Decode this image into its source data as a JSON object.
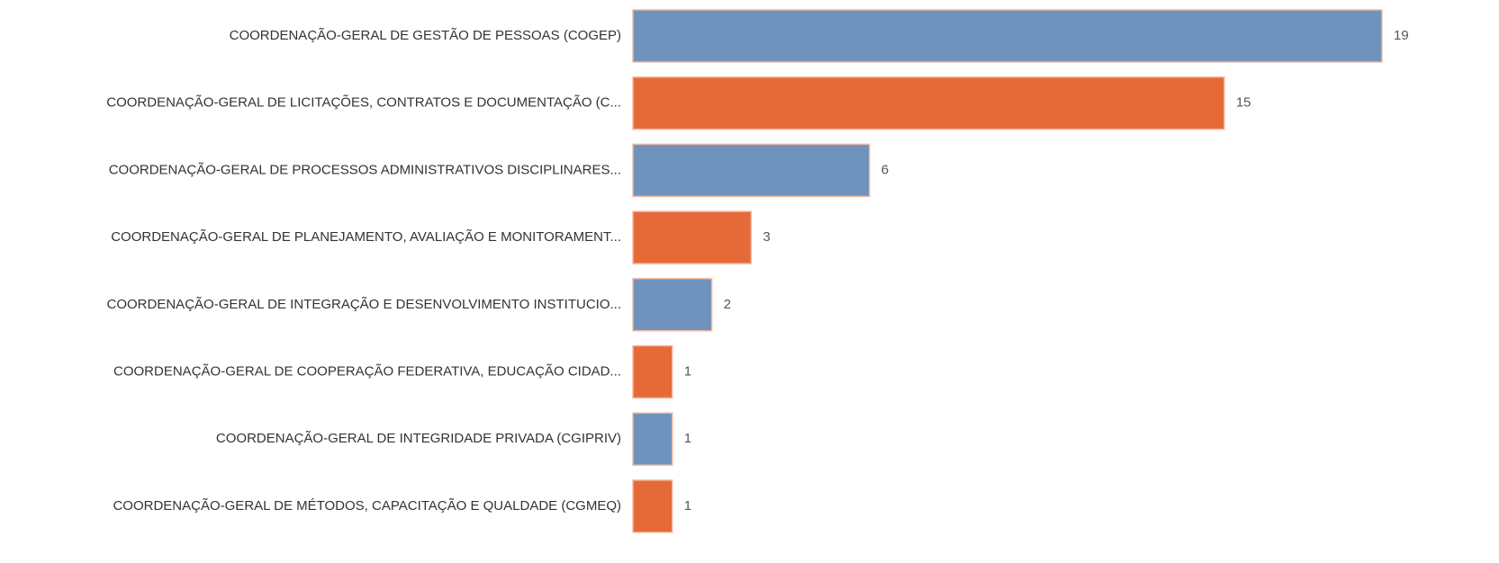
{
  "chart_data": {
    "type": "bar",
    "orientation": "horizontal",
    "categories": [
      "COORDENAÇÃO-GERAL DE GESTÃO DE PESSOAS (COGEP)",
      "COORDENAÇÃO-GERAL DE LICITAÇÕES, CONTRATOS E DOCUMENTAÇÃO (C...",
      "COORDENAÇÃO-GERAL DE PROCESSOS ADMINISTRATIVOS DISCIPLINARES...",
      "COORDENAÇÃO-GERAL DE PLANEJAMENTO, AVALIAÇÃO E MONITORAMENT...",
      "COORDENAÇÃO-GERAL DE INTEGRAÇÃO E DESENVOLVIMENTO INSTITUCIO...",
      "COORDENAÇÃO-GERAL DE COOPERAÇÃO FEDERATIVA, EDUCAÇÃO CIDAD...",
      "COORDENAÇÃO-GERAL DE INTEGRIDADE PRIVADA (CGIPRIV)",
      "COORDENAÇÃO-GERAL DE MÉTODOS, CAPACITAÇÃO E QUALDADE (CGMEQ)"
    ],
    "values": [
      19,
      15,
      6,
      3,
      2,
      1,
      1,
      1
    ],
    "colors": [
      "#6f92bf",
      "#e56a38",
      "#6f92bf",
      "#e56a38",
      "#6f92bf",
      "#e56a38",
      "#6f92bf",
      "#e56a38"
    ]
  }
}
